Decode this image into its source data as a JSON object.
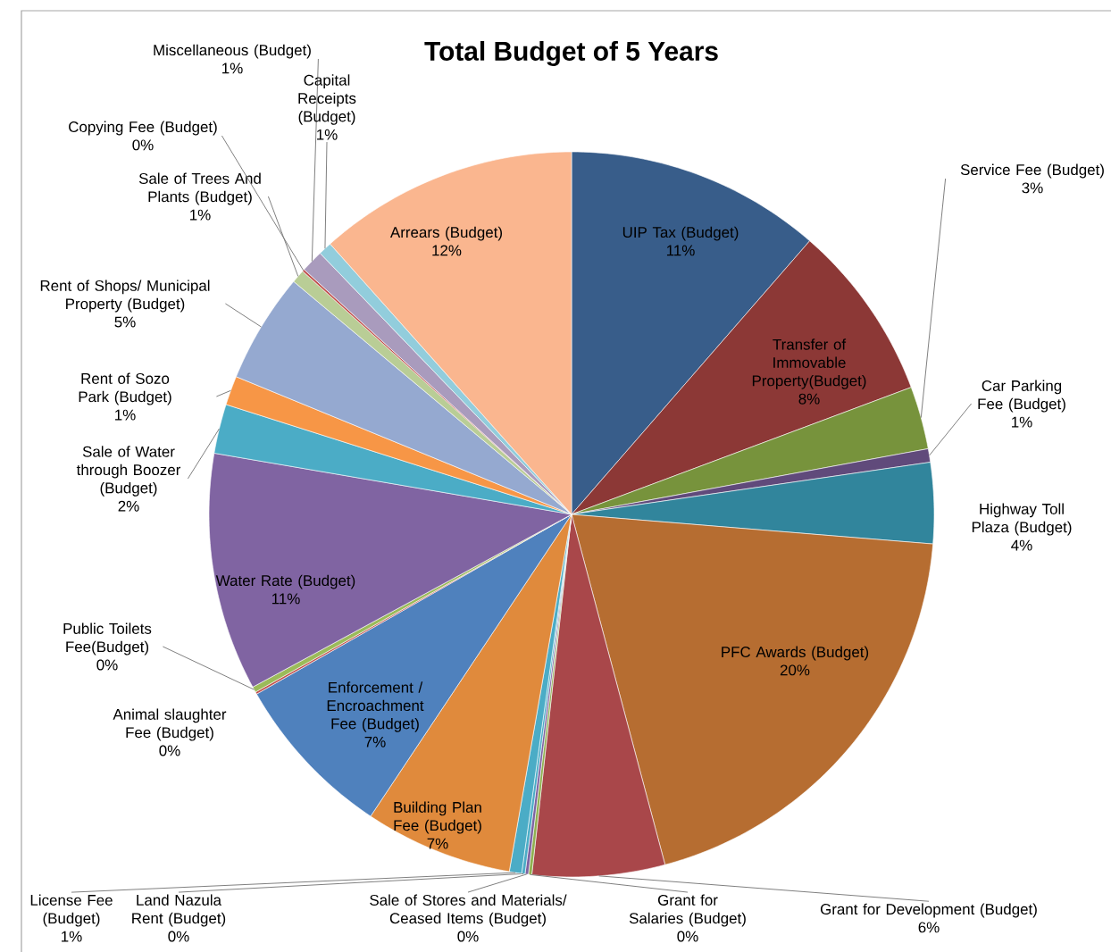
{
  "chart_data": {
    "type": "pie",
    "title": "Total Budget of 5 Years",
    "categories": [
      "UIP Tax (Budget)",
      "Transfer of Immovable Property(Budget)",
      "Service Fee (Budget)",
      "Car Parking Fee (Budget)",
      "Highway Toll Plaza (Budget)",
      "PFC Awards (Budget)",
      "Grant for Development (Budget)",
      "Grant for Salaries (Budget)",
      "Sale of Stores and Materials/ Ceased Items (Budget)",
      "Land Nazula Rent (Budget)",
      "License Fee (Budget)",
      "Building Plan Fee (Budget)",
      "Enforcement / Encroachment Fee (Budget)",
      "Animal slaughter Fee (Budget)",
      "Public Toilets Fee(Budget)",
      "Water Rate (Budget)",
      "Sale of Water through Boozer (Budget)",
      "Rent of Sozo Park (Budget)",
      "Rent of Shops/ Municipal Property (Budget)",
      "Sale of Trees And Plants (Budget)",
      "Copying Fee (Budget)",
      "Miscellaneous (Budget)",
      "Capital Receipts (Budget)",
      "Arrears (Budget)"
    ],
    "values": [
      11.4,
      7.9,
      2.8,
      0.6,
      3.6,
      19.55,
      5.9,
      0.15,
      0.15,
      0.15,
      0.55,
      6.6,
      7.4,
      0.1,
      0.25,
      10.6,
      2.2,
      1.3,
      4.9,
      0.6,
      0.1,
      1.0,
      0.6,
      11.6
    ],
    "value_labels": [
      "11%",
      "8%",
      "3%",
      "1%",
      "4%",
      "20%",
      "6%",
      "0%",
      "0%",
      "0%",
      "1%",
      "7%",
      "7%",
      "0%",
      "0%",
      "11%",
      "2%",
      "1%",
      "5%",
      "1%",
      "0%",
      "1%",
      "1%",
      "12%"
    ],
    "colors": [
      "#385d8a",
      "#8c3836",
      "#77933c",
      "#604a7b",
      "#31859c",
      "#b66d31",
      "#a9474a",
      "#8fb050",
      "#7e62a1",
      "#4bacc6",
      "#4bacc6",
      "#e08a3c",
      "#4f81bd",
      "#c0504d",
      "#9bbb59",
      "#8064a2",
      "#4bacc6",
      "#f79646",
      "#95a9d0",
      "#b9cd96",
      "#c0504d",
      "#a99bbd",
      "#92cddc",
      "#fab68f"
    ]
  }
}
